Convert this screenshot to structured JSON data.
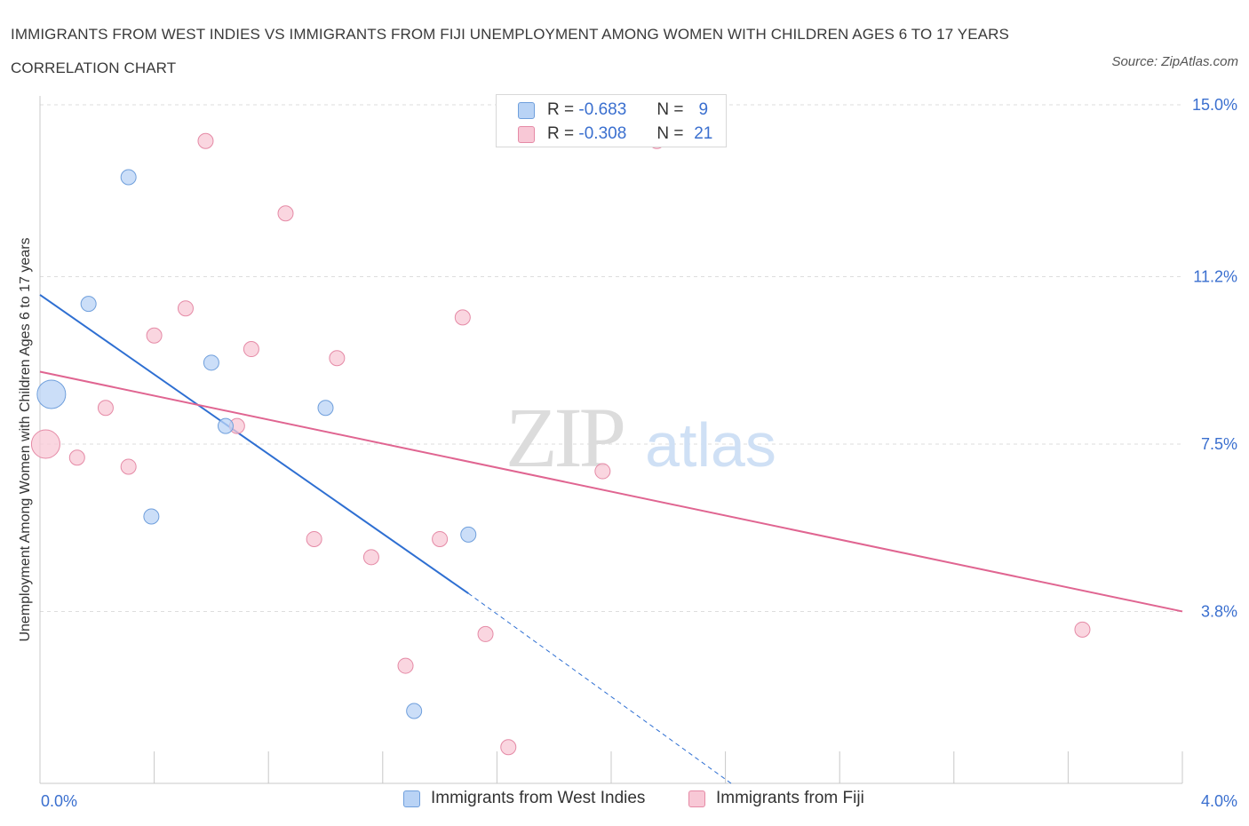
{
  "title": "IMMIGRANTS FROM WEST INDIES VS IMMIGRANTS FROM FIJI UNEMPLOYMENT AMONG WOMEN WITH CHILDREN AGES 6 TO 17 YEARS CORRELATION CHART",
  "source": "Source: ZipAtlas.com",
  "watermark": {
    "zip": "ZIP",
    "atlas": "atlas"
  },
  "colors": {
    "west_indies_fill": "#b9d3f5",
    "west_indies_stroke": "#6f9fdc",
    "west_indies_line": "#2e6fd2",
    "fiji_fill": "#f8c8d6",
    "fiji_stroke": "#e58aa6",
    "fiji_line": "#e06591",
    "axis_text": "#3a6fcf"
  },
  "stats": [
    {
      "series": "Immigrants from West Indies",
      "r_label": "R =",
      "r_value": "-0.683",
      "n_label": "N =",
      "n_value": "9"
    },
    {
      "series": "Immigrants from Fiji",
      "r_label": "R =",
      "r_value": "-0.308",
      "n_label": "N =",
      "n_value": "21"
    }
  ],
  "chart_data": {
    "type": "scatter",
    "title": "IMMIGRANTS FROM WEST INDIES VS IMMIGRANTS FROM FIJI UNEMPLOYMENT AMONG WOMEN WITH CHILDREN AGES 6 TO 17 YEARS CORRELATION CHART",
    "xlabel": "",
    "ylabel": "Unemployment Among Women with Children Ages 6 to 17 years",
    "xlim": [
      0.0,
      4.0
    ],
    "ylim": [
      0.0,
      15.0
    ],
    "x_tick_labels": [
      "0.0%",
      "4.0%"
    ],
    "y_ticks": [
      3.8,
      7.5,
      11.2,
      15.0
    ],
    "y_tick_labels": [
      "3.8%",
      "7.5%",
      "11.2%",
      "15.0%"
    ],
    "grid": true,
    "legend": "bottom-center",
    "series": [
      {
        "name": "Immigrants from West Indies",
        "points": [
          {
            "x": 0.04,
            "y": 8.6,
            "size": "large"
          },
          {
            "x": 0.31,
            "y": 13.4
          },
          {
            "x": 0.17,
            "y": 10.6
          },
          {
            "x": 0.6,
            "y": 9.3
          },
          {
            "x": 1.0,
            "y": 8.3
          },
          {
            "x": 0.65,
            "y": 7.9
          },
          {
            "x": 0.39,
            "y": 5.9
          },
          {
            "x": 1.5,
            "y": 5.5
          },
          {
            "x": 1.31,
            "y": 1.6
          }
        ],
        "trend": {
          "x": [
            0.0,
            1.5
          ],
          "y": [
            10.8,
            4.2
          ],
          "dashed_extension": {
            "x": [
              1.5,
              2.42
            ],
            "y": [
              4.2,
              0.0
            ]
          }
        }
      },
      {
        "name": "Immigrants from Fiji",
        "points": [
          {
            "x": 0.02,
            "y": 7.5,
            "size": "large"
          },
          {
            "x": 0.58,
            "y": 14.2
          },
          {
            "x": 2.16,
            "y": 14.2
          },
          {
            "x": 0.86,
            "y": 12.6
          },
          {
            "x": 0.51,
            "y": 10.5
          },
          {
            "x": 1.48,
            "y": 10.3
          },
          {
            "x": 0.4,
            "y": 9.9
          },
          {
            "x": 0.74,
            "y": 9.6
          },
          {
            "x": 1.04,
            "y": 9.4
          },
          {
            "x": 0.23,
            "y": 8.3
          },
          {
            "x": 0.69,
            "y": 7.9
          },
          {
            "x": 0.13,
            "y": 7.2
          },
          {
            "x": 0.31,
            "y": 7.0
          },
          {
            "x": 1.97,
            "y": 6.9
          },
          {
            "x": 0.96,
            "y": 5.4
          },
          {
            "x": 1.4,
            "y": 5.4
          },
          {
            "x": 1.16,
            "y": 5.0
          },
          {
            "x": 1.56,
            "y": 3.3
          },
          {
            "x": 3.65,
            "y": 3.4
          },
          {
            "x": 1.28,
            "y": 2.6
          },
          {
            "x": 1.64,
            "y": 0.8
          }
        ],
        "trend": {
          "x": [
            0.0,
            4.0
          ],
          "y": [
            9.1,
            3.8
          ]
        }
      }
    ]
  }
}
